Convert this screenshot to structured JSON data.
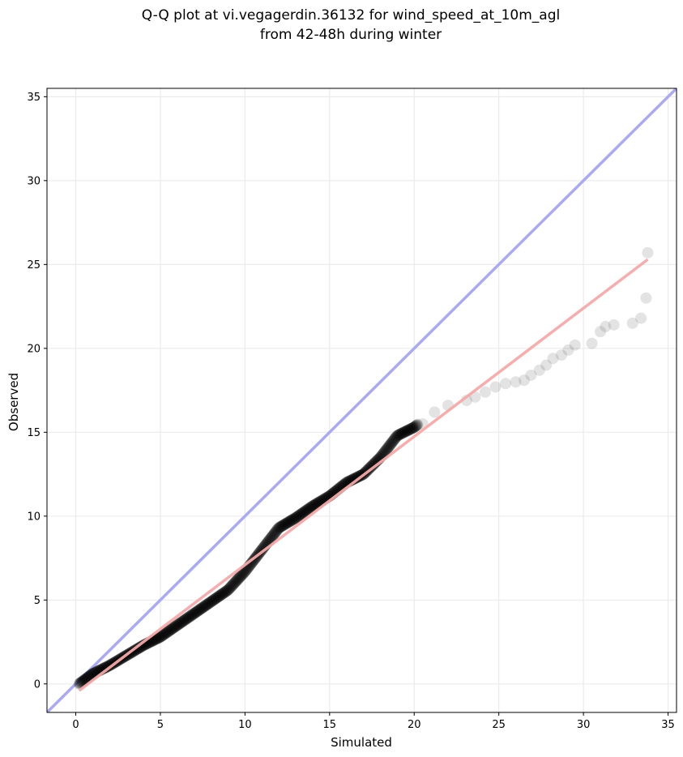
{
  "chart_data": {
    "type": "scatter",
    "title_line1": "Q-Q plot at vi.vegagerdin.36132 for wind_speed_at_10m_agl",
    "title_line2": "from 42-48h during winter",
    "xlabel": "Simulated",
    "ylabel": "Observed",
    "xlim": [
      -1.7,
      35.5
    ],
    "ylim": [
      -1.7,
      35.5
    ],
    "xticks": [
      0,
      5,
      10,
      15,
      20,
      25,
      30,
      35
    ],
    "yticks": [
      0,
      5,
      10,
      15,
      20,
      25,
      30,
      35
    ],
    "grid": true,
    "identity_line": {
      "from": [
        -1.7,
        -1.7
      ],
      "to": [
        35.5,
        35.5
      ],
      "color": "#aaaaf2"
    },
    "fit_line": {
      "from": [
        0.2,
        -0.4
      ],
      "to": [
        33.8,
        25.3
      ],
      "color": "#f4a9a9"
    },
    "quantile_curve": [
      [
        0.2,
        0.0
      ],
      [
        1,
        0.6
      ],
      [
        2,
        1.1
      ],
      [
        3,
        1.7
      ],
      [
        4,
        2.3
      ],
      [
        5,
        2.8
      ],
      [
        6,
        3.5
      ],
      [
        7,
        4.2
      ],
      [
        8,
        4.9
      ],
      [
        9,
        5.6
      ],
      [
        10,
        6.7
      ],
      [
        11,
        8.0
      ],
      [
        12,
        9.3
      ],
      [
        13,
        9.9
      ],
      [
        14,
        10.6
      ],
      [
        15,
        11.2
      ],
      [
        16,
        12.0
      ],
      [
        17,
        12.5
      ],
      [
        18,
        13.5
      ],
      [
        19,
        14.8
      ],
      [
        20,
        15.3
      ],
      [
        21,
        16.1
      ],
      [
        22,
        16.7
      ],
      [
        23,
        16.9
      ],
      [
        24,
        17.3
      ],
      [
        25,
        17.8
      ],
      [
        26,
        18.0
      ],
      [
        27,
        18.4
      ],
      [
        28,
        19.4
      ],
      [
        29,
        19.9
      ],
      [
        30,
        20.3
      ],
      [
        31,
        21.0
      ],
      [
        32,
        21.4
      ],
      [
        33,
        21.6
      ],
      [
        33.8,
        25.7
      ]
    ],
    "tail_points": [
      [
        20.5,
        15.5
      ],
      [
        21.2,
        16.2
      ],
      [
        22.0,
        16.6
      ],
      [
        23.1,
        16.9
      ],
      [
        23.6,
        17.1
      ],
      [
        24.2,
        17.4
      ],
      [
        24.8,
        17.7
      ],
      [
        25.4,
        17.9
      ],
      [
        26.0,
        18.0
      ],
      [
        26.5,
        18.1
      ],
      [
        26.9,
        18.4
      ],
      [
        27.4,
        18.7
      ],
      [
        27.8,
        19.0
      ],
      [
        28.2,
        19.4
      ],
      [
        28.7,
        19.6
      ],
      [
        29.1,
        19.9
      ],
      [
        29.5,
        20.2
      ],
      [
        30.5,
        20.3
      ],
      [
        31.0,
        21.0
      ],
      [
        31.3,
        21.3
      ],
      [
        31.8,
        21.4
      ],
      [
        32.9,
        21.5
      ],
      [
        33.4,
        21.8
      ],
      [
        33.7,
        23.0
      ],
      [
        33.8,
        25.7
      ]
    ]
  }
}
